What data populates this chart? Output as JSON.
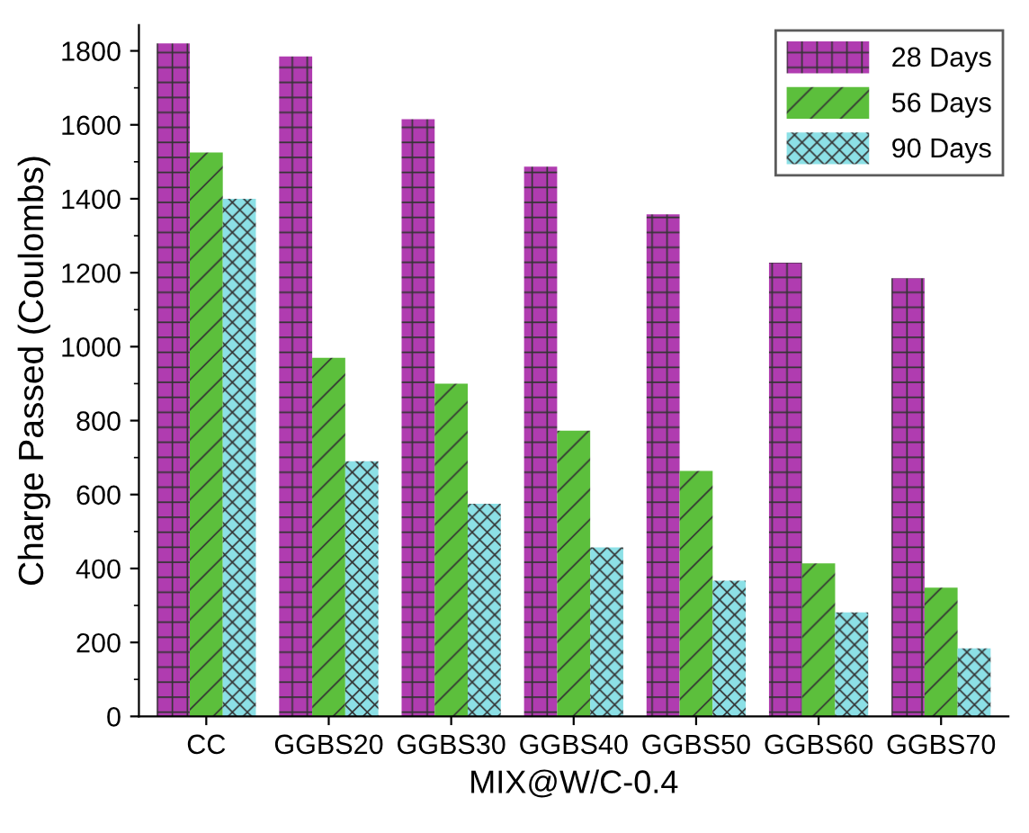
{
  "chart_data": {
    "type": "bar",
    "xlabel": "MIX@W/C-0.4",
    "ylabel": "Charge Passed (Coulombs)",
    "categories": [
      "CC",
      "GGBS20",
      "GGBS30",
      "GGBS40",
      "GGBS50",
      "GGBS60",
      "GGBS70"
    ],
    "series": [
      {
        "name": "28 Days",
        "color": "#b03cb0",
        "values": [
          1820,
          1785,
          1615,
          1487,
          1358,
          1227,
          1185
        ]
      },
      {
        "name": "56 Days",
        "color": "#5cbf3c",
        "values": [
          1525,
          970,
          900,
          773,
          664,
          414,
          348
        ]
      },
      {
        "name": "90 Days",
        "color": "#8ce0e6",
        "values": [
          1400,
          690,
          575,
          457,
          367,
          281,
          184
        ]
      }
    ],
    "ylim": [
      0,
      1870
    ],
    "yticks": [
      0,
      200,
      400,
      600,
      800,
      1000,
      1200,
      1400,
      1600,
      1800
    ],
    "grid": false,
    "legend": "top right"
  }
}
